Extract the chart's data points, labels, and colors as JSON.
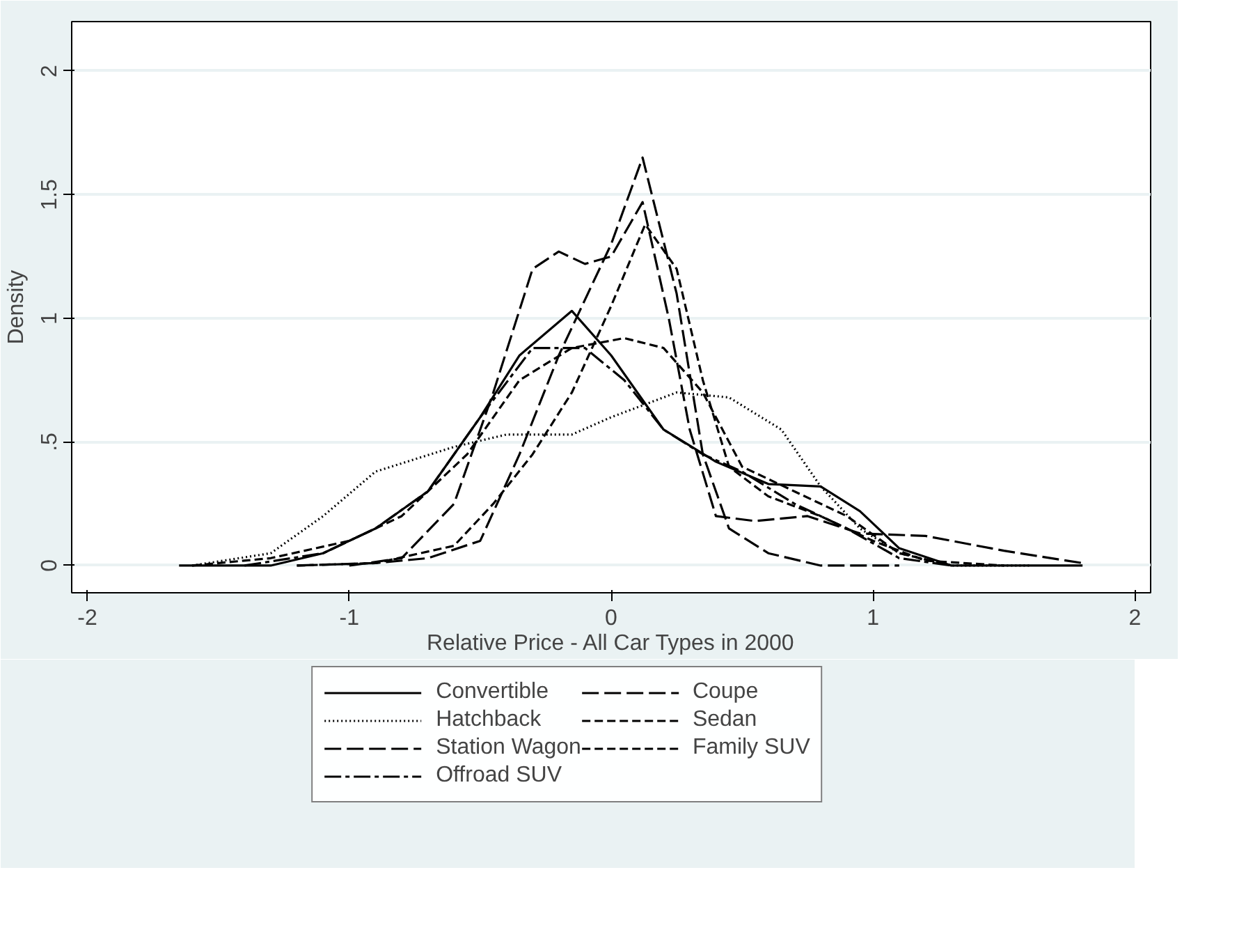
{
  "chart_data": {
    "type": "line",
    "xlabel": "Relative Price - All Car Types in 2000",
    "ylabel": "Density",
    "xlim": [
      -2.06,
      2.06
    ],
    "ylim": [
      -0.11,
      2.2
    ],
    "xticks": [
      -2,
      -1,
      0,
      1,
      2
    ],
    "yticks": [
      0,
      {
        "value": 0.5,
        "label": ".5"
      },
      1,
      1.5,
      2
    ],
    "grid": "y",
    "legend": "bottom",
    "series": [
      {
        "name": "Convertible",
        "color": "#000000",
        "line_style": "solid",
        "x": [
          -1.65,
          -1.3,
          -1.1,
          -0.9,
          -0.7,
          -0.5,
          -0.35,
          -0.15,
          0.0,
          0.2,
          0.4,
          0.6,
          0.8,
          0.95,
          1.1,
          1.3,
          1.8
        ],
        "values": [
          0,
          0.0,
          0.05,
          0.15,
          0.3,
          0.6,
          0.85,
          1.03,
          0.85,
          0.55,
          0.42,
          0.33,
          0.32,
          0.22,
          0.07,
          0.0,
          0
        ]
      },
      {
        "name": "Coupe",
        "color": "#000000",
        "line_style": "longdash",
        "x": [
          -1.2,
          -0.9,
          -0.7,
          -0.5,
          -0.35,
          -0.2,
          0.0,
          0.12,
          0.25,
          0.35,
          0.45,
          0.6,
          0.8,
          1.1
        ],
        "values": [
          0,
          0.01,
          0.03,
          0.1,
          0.45,
          0.85,
          1.3,
          1.65,
          1.1,
          0.45,
          0.15,
          0.05,
          0.0,
          0
        ]
      },
      {
        "name": "Hatchback",
        "color": "#000000",
        "line_style": "dotted",
        "x": [
          -1.6,
          -1.3,
          -1.1,
          -0.9,
          -0.6,
          -0.4,
          -0.15,
          0.0,
          0.25,
          0.45,
          0.65,
          0.8,
          0.95,
          1.1,
          1.3,
          1.6
        ],
        "values": [
          0,
          0.05,
          0.2,
          0.38,
          0.48,
          0.53,
          0.53,
          0.6,
          0.7,
          0.68,
          0.55,
          0.32,
          0.15,
          0.05,
          0.0,
          0
        ]
      },
      {
        "name": "Sedan",
        "color": "#000000",
        "line_style": "dashed",
        "x": [
          -1.6,
          -1.3,
          -1.0,
          -0.8,
          -0.55,
          -0.35,
          -0.15,
          0.05,
          0.2,
          0.35,
          0.5,
          0.7,
          0.9,
          1.1,
          1.3
        ],
        "values": [
          0,
          0.03,
          0.1,
          0.2,
          0.45,
          0.75,
          0.88,
          0.92,
          0.88,
          0.7,
          0.4,
          0.3,
          0.2,
          0.05,
          0
        ]
      },
      {
        "name": "Station Wagon",
        "color": "#000000",
        "line_style": "longdash",
        "x": [
          -1.0,
          -0.8,
          -0.6,
          -0.45,
          -0.3,
          -0.2,
          -0.1,
          0.0,
          0.12,
          0.22,
          0.3,
          0.4,
          0.55,
          0.75,
          0.95,
          1.2,
          1.5,
          1.8
        ],
        "values": [
          0,
          0.03,
          0.25,
          0.7,
          1.2,
          1.27,
          1.22,
          1.25,
          1.47,
          1.0,
          0.55,
          0.2,
          0.18,
          0.2,
          0.13,
          0.12,
          0.06,
          0.01
        ]
      },
      {
        "name": "Family SUV",
        "color": "#000000",
        "line_style": "dashed",
        "x": [
          -1.2,
          -0.9,
          -0.6,
          -0.45,
          -0.3,
          -0.15,
          0.0,
          0.13,
          0.25,
          0.35,
          0.45,
          0.6,
          0.8,
          1.0,
          1.2,
          1.5
        ],
        "values": [
          0,
          0.01,
          0.08,
          0.25,
          0.45,
          0.7,
          1.05,
          1.38,
          1.2,
          0.75,
          0.4,
          0.28,
          0.2,
          0.1,
          0.02,
          0
        ]
      },
      {
        "name": "Offroad SUV",
        "color": "#000000",
        "line_style": "dashdot",
        "x": [
          -1.4,
          -1.1,
          -0.9,
          -0.7,
          -0.5,
          -0.3,
          -0.1,
          0.05,
          0.2,
          0.35,
          0.5,
          0.7,
          0.9,
          1.1,
          1.3
        ],
        "values": [
          0,
          0.05,
          0.15,
          0.3,
          0.6,
          0.88,
          0.88,
          0.75,
          0.55,
          0.45,
          0.38,
          0.25,
          0.15,
          0.03,
          0
        ]
      }
    ]
  }
}
